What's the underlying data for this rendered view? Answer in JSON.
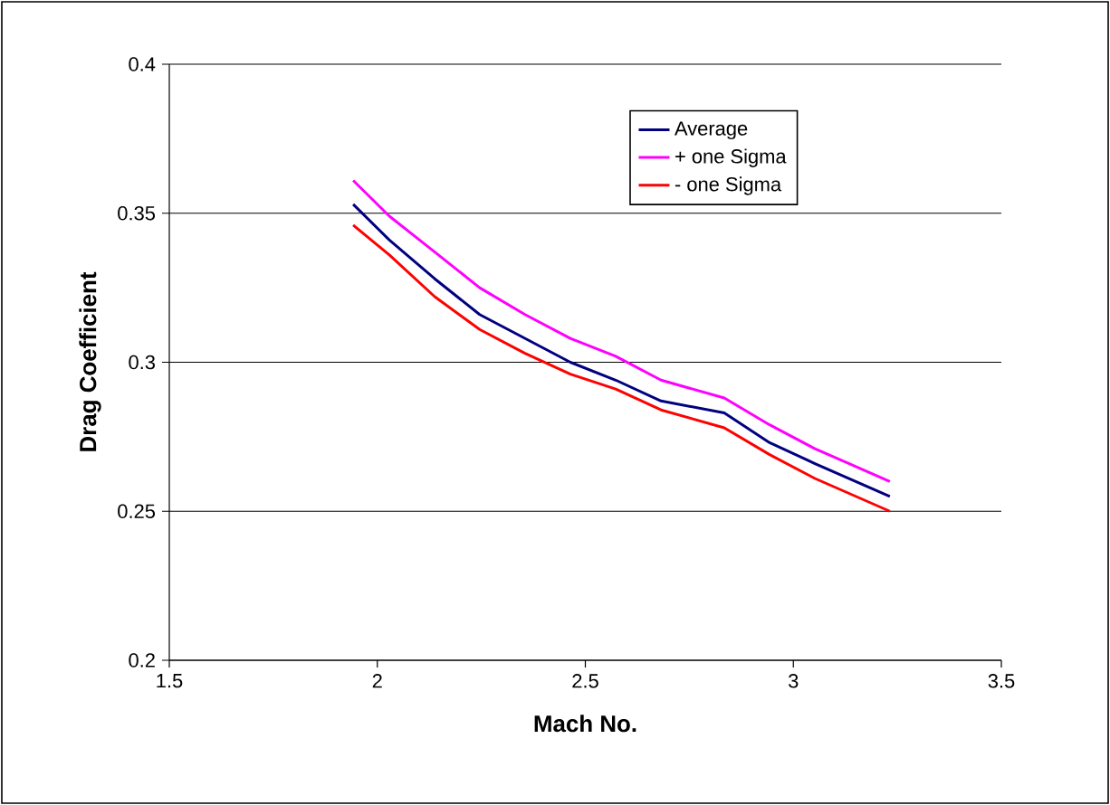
{
  "chart_data": {
    "type": "line",
    "xlabel": "Mach No.",
    "ylabel": "Drag Coefficient",
    "xlim": [
      1.5,
      3.5
    ],
    "xticks": [
      1.5,
      2,
      2.5,
      3,
      3.5
    ],
    "ylim": [
      0.2,
      0.4
    ],
    "yticks": [
      0.2,
      0.25,
      0.3,
      0.35,
      0.4
    ],
    "grid": "y",
    "legend": "top right",
    "marker": "none",
    "line_style": "solid",
    "series": [
      {
        "name": "Average",
        "color": "#000080",
        "x": [
          1.942,
          2.029,
          2.138,
          2.246,
          2.355,
          2.464,
          2.573,
          2.682,
          2.834,
          2.943,
          3.052,
          3.232
        ],
        "values": [
          0.353,
          0.341,
          0.328,
          0.316,
          0.308,
          0.3,
          0.294,
          0.287,
          0.283,
          0.273,
          0.266,
          0.255
        ]
      },
      {
        "name": "+ one Sigma",
        "color": "#ff00ff",
        "x": [
          1.942,
          2.029,
          2.138,
          2.246,
          2.355,
          2.464,
          2.573,
          2.682,
          2.834,
          2.943,
          3.052,
          3.232
        ],
        "values": [
          0.361,
          0.349,
          0.337,
          0.325,
          0.316,
          0.308,
          0.302,
          0.294,
          0.288,
          0.279,
          0.271,
          0.26
        ]
      },
      {
        "name": "- one Sigma",
        "color": "#ff0000",
        "x": [
          1.942,
          2.029,
          2.138,
          2.246,
          2.355,
          2.464,
          2.573,
          2.682,
          2.834,
          2.943,
          3.052,
          3.232
        ],
        "values": [
          0.346,
          0.336,
          0.322,
          0.311,
          0.303,
          0.296,
          0.291,
          0.284,
          0.278,
          0.269,
          0.261,
          0.25
        ]
      }
    ]
  }
}
